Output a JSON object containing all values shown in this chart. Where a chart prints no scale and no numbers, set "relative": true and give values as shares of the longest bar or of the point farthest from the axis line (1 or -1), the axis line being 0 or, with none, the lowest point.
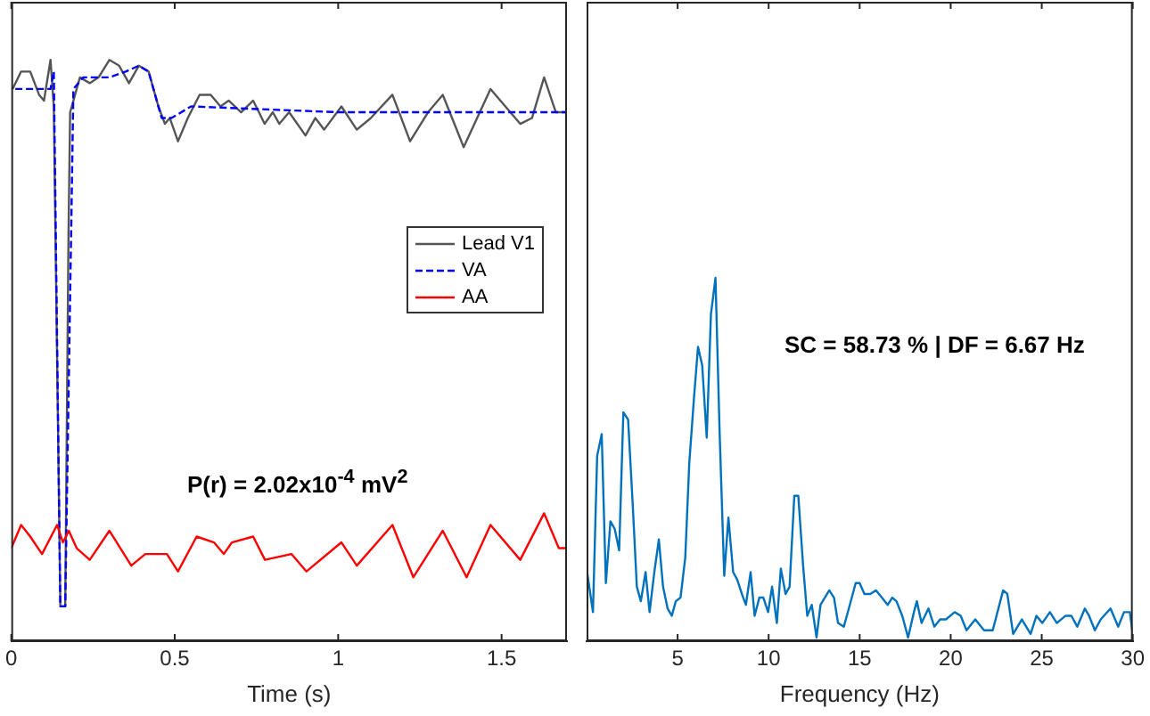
{
  "chart_data": [
    {
      "type": "line",
      "xlabel": "Time (s)",
      "relative": true,
      "xlim": [
        0,
        1.7
      ],
      "xticks": [
        0,
        0.5,
        1,
        1.5
      ],
      "grid": false,
      "legend": "right",
      "marker": "none",
      "annotations": [
        "P(r) = 2.02x10$^{-4}$ mV$^{2}$"
      ],
      "series": [
        {
          "name": "Lead V1",
          "color": "#555555",
          "line_style": "solid",
          "x": [
            0.004,
            0.03,
            0.058,
            0.085,
            0.1,
            0.12,
            0.13,
            0.15,
            0.165,
            0.175,
            0.18,
            0.21,
            0.24,
            0.267,
            0.3,
            0.33,
            0.36,
            0.39,
            0.42,
            0.45,
            0.47,
            0.485,
            0.51,
            0.54,
            0.576,
            0.61,
            0.64,
            0.665,
            0.703,
            0.74,
            0.775,
            0.8,
            0.82,
            0.85,
            0.9,
            0.93,
            0.957,
            1.01,
            1.057,
            1.1,
            1.166,
            1.22,
            1.275,
            1.32,
            1.384,
            1.466,
            1.557,
            1.593,
            1.63,
            1.666,
            1.695
          ],
          "values": [
            0.95,
            0.98,
            0.98,
            0.94,
            0.93,
            1.0,
            0.92,
            0.06,
            0.06,
            0.7,
            0.91,
            0.97,
            0.96,
            0.97,
            1.0,
            0.99,
            0.96,
            0.99,
            0.98,
            0.92,
            0.89,
            0.9,
            0.86,
            0.9,
            0.94,
            0.94,
            0.92,
            0.93,
            0.91,
            0.93,
            0.89,
            0.91,
            0.89,
            0.91,
            0.87,
            0.9,
            0.88,
            0.92,
            0.88,
            0.9,
            0.94,
            0.86,
            0.91,
            0.94,
            0.85,
            0.95,
            0.89,
            0.9,
            0.97,
            0.91,
            0.91
          ]
        },
        {
          "name": "VA",
          "color": "#0000ff",
          "line_style": "dashed",
          "x": [
            0,
            0.12,
            0.13,
            0.15,
            0.165,
            0.19,
            0.22,
            0.3,
            0.35,
            0.39,
            0.42,
            0.46,
            0.49,
            0.55,
            1.0,
            1.695
          ],
          "values": [
            0.95,
            0.95,
            0.98,
            0.06,
            0.06,
            0.95,
            0.97,
            0.97,
            0.98,
            0.99,
            0.98,
            0.9,
            0.9,
            0.92,
            0.91,
            0.91
          ]
        },
        {
          "name": "AA",
          "color": "#ff0000",
          "line_style": "solid",
          "x": [
            0,
            0.03,
            0.058,
            0.094,
            0.14,
            0.158,
            0.176,
            0.2,
            0.24,
            0.3,
            0.367,
            0.41,
            0.476,
            0.51,
            0.567,
            0.62,
            0.65,
            0.675,
            0.74,
            0.776,
            0.857,
            0.903,
            1.01,
            1.057,
            1.166,
            1.23,
            1.32,
            1.393,
            1.466,
            1.557,
            1.63,
            1.675,
            1.695
          ],
          "values": [
            0.16,
            0.2,
            0.18,
            0.15,
            0.2,
            0.17,
            0.19,
            0.16,
            0.14,
            0.19,
            0.13,
            0.15,
            0.15,
            0.12,
            0.18,
            0.17,
            0.15,
            0.17,
            0.18,
            0.14,
            0.15,
            0.12,
            0.17,
            0.13,
            0.2,
            0.11,
            0.19,
            0.11,
            0.2,
            0.14,
            0.22,
            0.16,
            0.16
          ]
        }
      ]
    },
    {
      "type": "line",
      "xlabel": "Frequency (Hz)",
      "relative": true,
      "xlim": [
        0,
        30
      ],
      "xticks": [
        5,
        10,
        15,
        20,
        25,
        30
      ],
      "grid": false,
      "marker": "none",
      "annotations": [
        "SC = 58.73 % | DF = 6.67 Hz"
      ],
      "series": [
        {
          "color": "#0072bd",
          "line_style": "solid",
          "x": [
            0.03,
            0.35,
            0.58,
            0.83,
            1.06,
            1.31,
            1.54,
            1.79,
            2.02,
            2.28,
            2.53,
            2.76,
            2.98,
            3.24,
            3.46,
            3.72,
            3.97,
            4.2,
            4.45,
            4.68,
            4.9,
            5.16,
            5.42,
            5.64,
            5.9,
            6.12,
            6.35,
            6.6,
            6.83,
            7.08,
            7.31,
            7.56,
            7.79,
            8.05,
            8.27,
            8.53,
            8.75,
            9.01,
            9.23,
            9.49,
            9.71,
            9.97,
            10.19,
            10.45,
            10.67,
            10.93,
            11.15,
            11.41,
            11.63,
            11.89,
            12.12,
            12.37,
            12.63,
            12.85,
            13.33,
            13.59,
            13.81,
            14.13,
            14.46,
            14.78,
            15.0,
            15.26,
            15.58,
            15.9,
            16.22,
            16.54,
            16.79,
            17.02,
            17.34,
            17.66,
            17.98,
            18.14,
            18.4,
            18.78,
            19.1,
            19.42,
            19.74,
            20.22,
            20.55,
            20.87,
            21.35,
            21.83,
            22.31,
            22.88,
            23.11,
            23.43,
            23.91,
            24.39,
            24.71,
            25.03,
            25.45,
            25.83,
            26.31,
            26.63,
            26.95,
            27.37,
            27.6,
            27.92,
            28.24,
            28.78,
            29.2,
            29.52,
            29.84,
            30
          ],
          "values": [
            0.19,
            0.08,
            0.51,
            0.57,
            0.16,
            0.33,
            0.31,
            0.25,
            0.63,
            0.61,
            0.38,
            0.15,
            0.11,
            0.19,
            0.08,
            0.19,
            0.28,
            0.15,
            0.09,
            0.07,
            0.11,
            0.12,
            0.23,
            0.49,
            0.67,
            0.81,
            0.76,
            0.56,
            0.9,
            1,
            0.57,
            0.18,
            0.34,
            0.19,
            0.17,
            0.13,
            0.1,
            0.19,
            0.07,
            0.12,
            0.12,
            0.08,
            0.15,
            0.05,
            0.2,
            0.13,
            0.15,
            0.4,
            0.4,
            0.21,
            0.07,
            0.1,
            0.01,
            0.1,
            0.14,
            0.12,
            0.05,
            0.04,
            0.1,
            0.16,
            0.16,
            0.13,
            0.13,
            0.14,
            0.12,
            0.1,
            0.12,
            0.11,
            0.07,
            0.01,
            0.08,
            0.11,
            0.05,
            0.09,
            0.04,
            0.06,
            0.06,
            0.08,
            0.07,
            0.03,
            0.06,
            0.03,
            0.03,
            0.14,
            0.13,
            0.02,
            0.06,
            0.02,
            0.07,
            0.05,
            0.08,
            0.05,
            0.07,
            0.07,
            0.04,
            0.09,
            0.07,
            0.03,
            0.06,
            0.09,
            0.04,
            0.08,
            0.08,
            0.02
          ]
        }
      ]
    }
  ]
}
